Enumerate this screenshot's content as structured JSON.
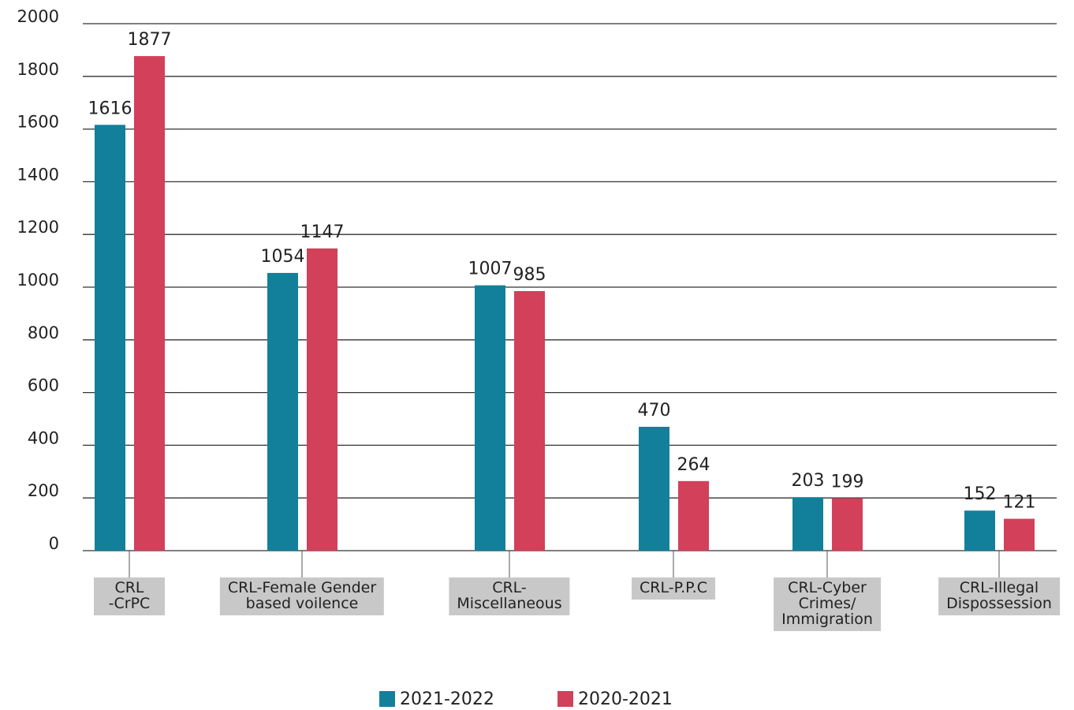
{
  "chart_data": {
    "type": "bar",
    "categories": [
      "CRL\n-CrPC",
      "CRL-Female Gender\nbased voilence",
      "CRL-\nMiscellaneous",
      "CRL-P.P.C",
      "CRL-Cyber\nCrimes/\nImmigration",
      "CRL-Illegal\nDispossession"
    ],
    "series": [
      {
        "name": "2021-2022",
        "color": "#12809a",
        "values": [
          1616,
          1054,
          1007,
          470,
          203,
          152
        ]
      },
      {
        "name": "2020-2021",
        "color": "#d2405a",
        "values": [
          1877,
          1147,
          985,
          264,
          199,
          121
        ]
      }
    ],
    "ylim": [
      0,
      2000
    ],
    "yticks": [
      0,
      200,
      400,
      600,
      800,
      1000,
      1200,
      1400,
      1600,
      1800,
      2000
    ],
    "grid": true,
    "legend": "bottom"
  }
}
